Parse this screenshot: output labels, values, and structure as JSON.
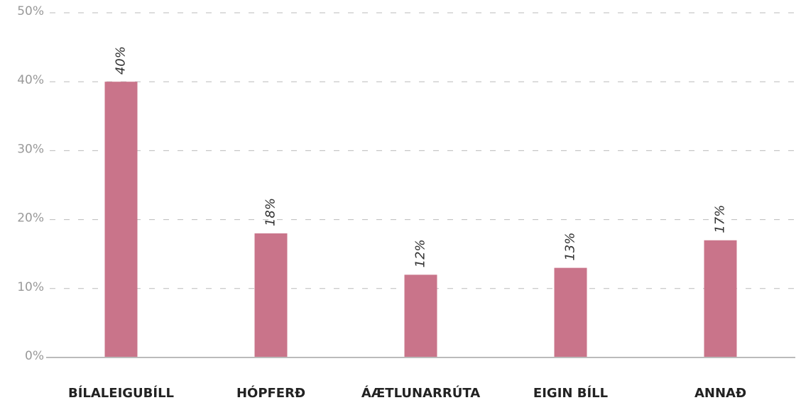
{
  "chart_data": {
    "type": "bar",
    "categories": [
      "BÍLALEIGUBÍLL",
      "HÓPFERÐ",
      "ÁÆTLUNARRÚTA",
      "EIGIN BÍLL",
      "ANNAÐ"
    ],
    "values": [
      40,
      18,
      12,
      13,
      17
    ],
    "value_labels": [
      "40%",
      "18%",
      "12%",
      "13%",
      "17%"
    ],
    "color": "#c9748a",
    "ylim": [
      0,
      50
    ],
    "yticks": [
      {
        "value": 0,
        "label": "0%"
      },
      {
        "value": 10,
        "label": "10%"
      },
      {
        "value": 20,
        "label": "20%"
      },
      {
        "value": 30,
        "label": "30%"
      },
      {
        "value": 40,
        "label": "40%"
      },
      {
        "value": 50,
        "label": "50%"
      }
    ],
    "grid": true
  }
}
